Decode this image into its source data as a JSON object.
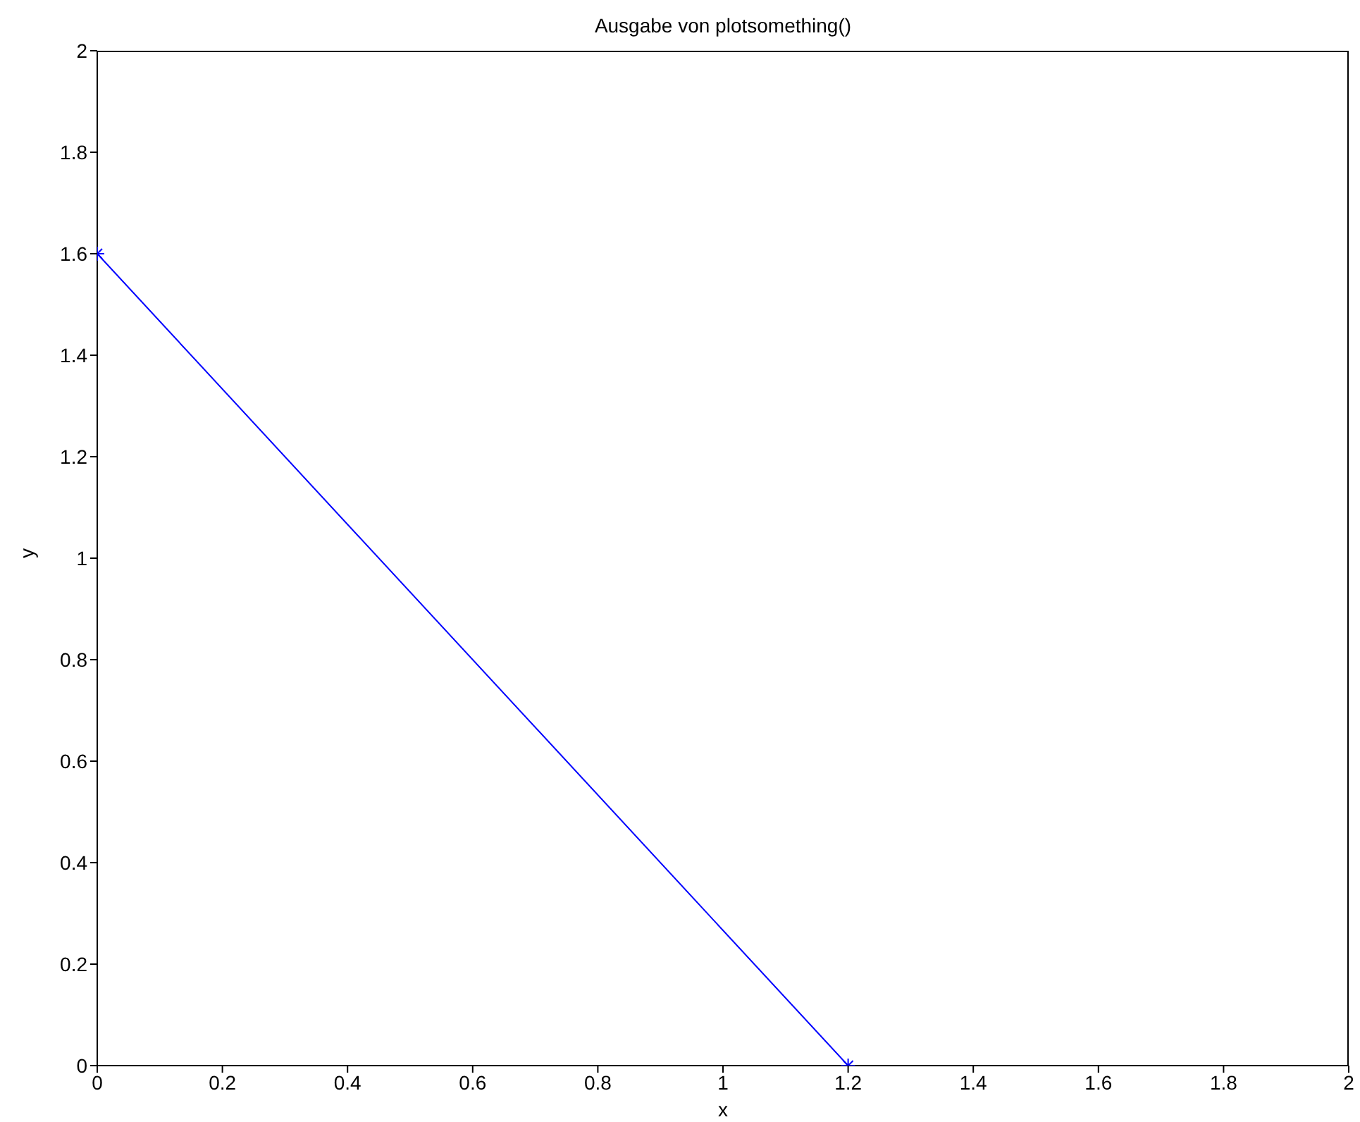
{
  "chart_data": {
    "type": "line",
    "title": "Ausgabe von plotsomething()",
    "xlabel": "x",
    "ylabel": "y",
    "x": [
      0,
      1.2
    ],
    "series": [
      {
        "color": "#0000ff",
        "values": [
          1.6,
          0
        ]
      }
    ],
    "xlim": [
      0,
      2
    ],
    "ylim": [
      0,
      2
    ],
    "xticks": [
      0,
      0.2,
      0.4,
      0.6,
      0.8,
      1,
      1.2,
      1.4,
      1.6,
      1.8,
      2
    ],
    "yticks": [
      0,
      0.2,
      0.4,
      0.6,
      0.8,
      1,
      1.2,
      1.4,
      1.6,
      1.8,
      2
    ],
    "grid": false,
    "legend": false,
    "marker": "cross",
    "line_style": "solid"
  }
}
